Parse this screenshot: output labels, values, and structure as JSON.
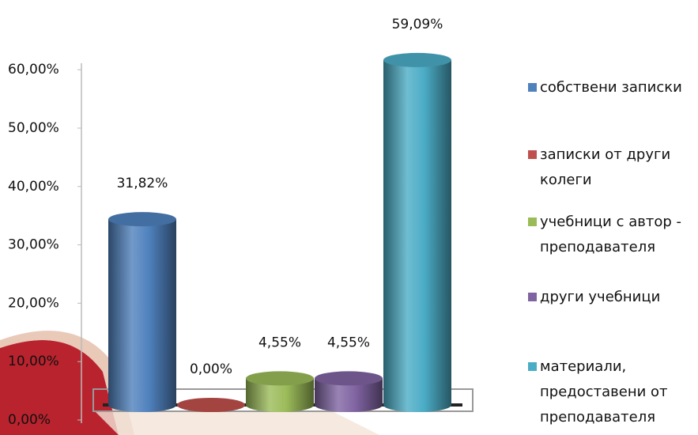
{
  "chart_data": {
    "type": "bar",
    "categories": [
      null
    ],
    "series": [
      {
        "name": "собствени записки",
        "color": "#4f81bd",
        "values": [
          31.82
        ],
        "value_labels": [
          "31,82%"
        ]
      },
      {
        "name": "записки от други колеги",
        "color": "#c0504d",
        "values": [
          0
        ],
        "value_labels": [
          "0,00%"
        ]
      },
      {
        "name": "учебници с автор - преподавателя",
        "color": "#9bbb59",
        "values": [
          4.55
        ],
        "value_labels": [
          "4,55%"
        ]
      },
      {
        "name": "други учебници",
        "color": "#8064a2",
        "values": [
          4.55
        ],
        "value_labels": [
          "4,55%"
        ]
      },
      {
        "name": "материали, предоставени от преподавателя",
        "color": "#4bacc6",
        "values": [
          59.09
        ],
        "value_labels": [
          "59,09%"
        ]
      }
    ],
    "ylim": [
      0,
      60
    ],
    "yticks": [
      {
        "value": 0,
        "label": "0,00%"
      },
      {
        "value": 10,
        "label": "10,00%"
      },
      {
        "value": 20,
        "label": "20,00%"
      },
      {
        "value": 30,
        "label": "30,00%"
      },
      {
        "value": 40,
        "label": "40,00%"
      },
      {
        "value": 50,
        "label": "50,00%"
      },
      {
        "value": 60,
        "label": "60,00%"
      }
    ],
    "legend": "right"
  }
}
